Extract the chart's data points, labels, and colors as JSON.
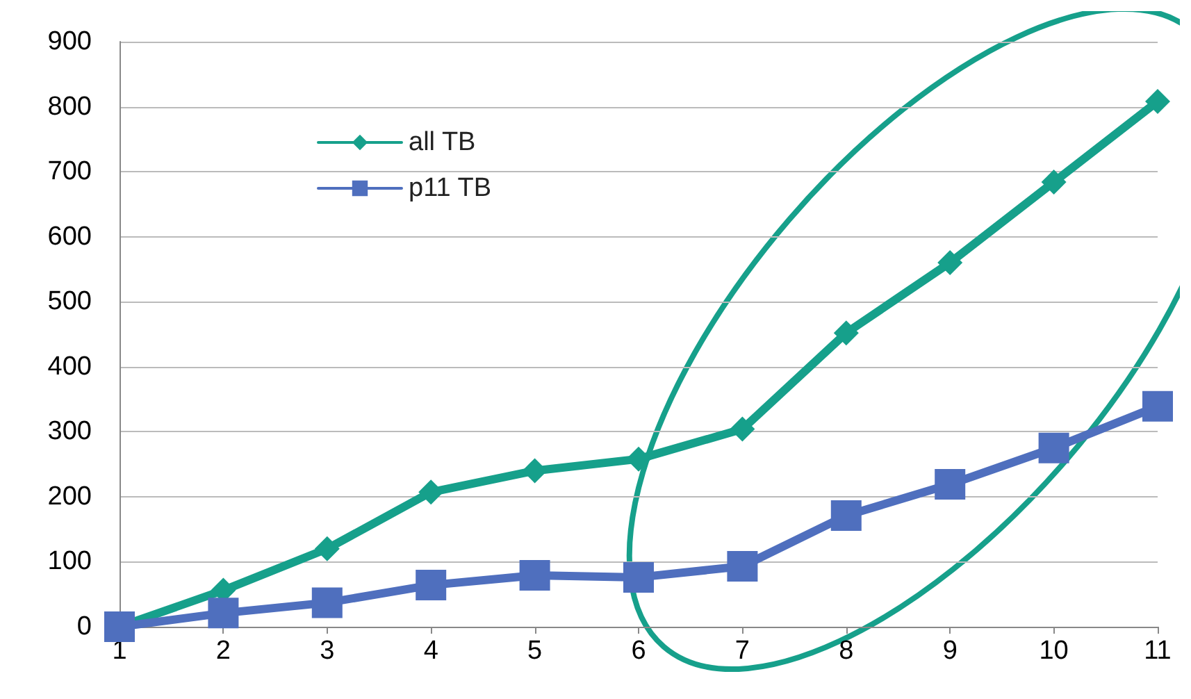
{
  "chart_data": {
    "type": "line",
    "categories": [
      "1",
      "2",
      "3",
      "4",
      "5",
      "6",
      "7",
      "8",
      "9",
      "10",
      "11"
    ],
    "series": [
      {
        "name": "all TB",
        "color": "#16a08b",
        "marker": "diamond",
        "values": [
          0,
          56,
          120,
          207,
          240,
          258,
          304,
          452,
          560,
          684,
          808
        ]
      },
      {
        "name": "p11 TB",
        "color": "#4f6fbe",
        "marker": "square",
        "values": [
          0,
          21,
          37,
          64,
          79,
          76,
          93,
          171,
          219,
          275,
          339
        ]
      }
    ],
    "ylim": [
      0,
      900
    ],
    "yticks": [
      0,
      100,
      200,
      300,
      400,
      500,
      600,
      700,
      800,
      900
    ],
    "grid": "y",
    "legend": "top left",
    "line_style": "solid"
  }
}
